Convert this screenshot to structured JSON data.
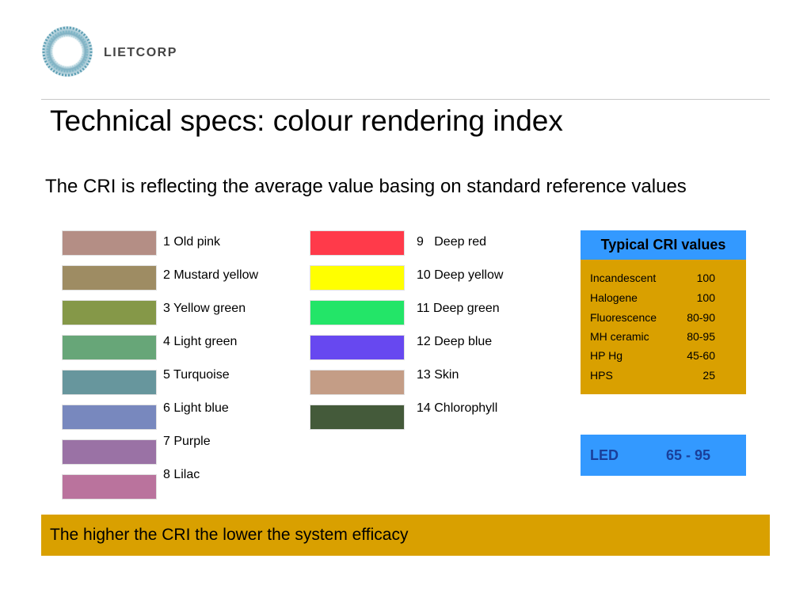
{
  "logo": {
    "text": "LIETCORP"
  },
  "title": "Technical specs: colour rendering index",
  "subtitle": "The CRI is reflecting the average value  basing on standard reference values",
  "swatches_left": [
    {
      "label": "1 Old pink",
      "color": "#b48e85"
    },
    {
      "label": "2 Mustard yellow",
      "color": "#9e8c63"
    },
    {
      "label": "3 Yellow green",
      "color": "#859848"
    },
    {
      "label": "4 Light green",
      "color": "#67a678"
    },
    {
      "label": "5 Turquoise",
      "color": "#67969d"
    },
    {
      "label": "6 Light blue",
      "color": "#7888be"
    },
    {
      "label": "7 Purple",
      "color": "#9a72a5"
    },
    {
      "label": "8 Lilac",
      "color": "#ba739d"
    }
  ],
  "swatches_right": [
    {
      "label": "9   Deep red",
      "color": "#ff3a4a"
    },
    {
      "label": "10 Deep yellow",
      "color": "#ffff00"
    },
    {
      "label": "11 Deep green",
      "color": "#23e568"
    },
    {
      "label": "12 Deep blue",
      "color": "#6748f0"
    },
    {
      "label": "13 Skin",
      "color": "#c49d86"
    },
    {
      "label": "14 Chlorophyll",
      "color": "#445a3a"
    }
  ],
  "cri_table": {
    "heading": "Typical CRI values",
    "rows": [
      {
        "name": "Incandescent",
        "value": "100"
      },
      {
        "name": "Halogene",
        "value": "100"
      },
      {
        "name": "Fluorescence",
        "value": "80-90"
      },
      {
        "name": "MH ceramic",
        "value": "80-95"
      },
      {
        "name": "HP Hg",
        "value": "45-60"
      },
      {
        "name": "HPS",
        "value": "25"
      }
    ]
  },
  "led": {
    "label": "LED",
    "value": "65 - 95"
  },
  "footer": "The higher the CRI the lower the system efficacy",
  "colors": {
    "gold": "#d9a000",
    "blue": "#3399ff",
    "led_text": "#1a3f9a"
  }
}
